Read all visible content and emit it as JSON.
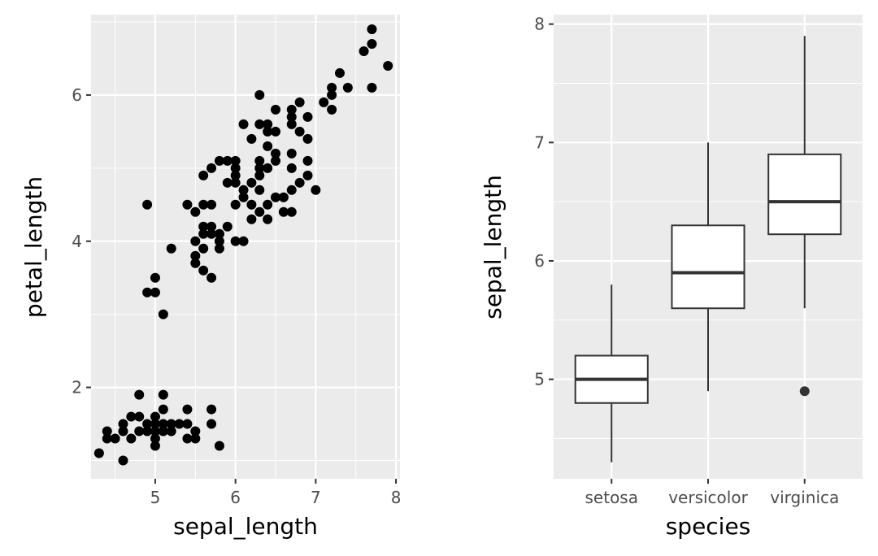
{
  "chart_data": [
    {
      "type": "scatter",
      "xlabel": "sepal_length",
      "ylabel": "petal_length",
      "xlim": [
        4.2,
        8.05
      ],
      "ylim": [
        0.75,
        7.1
      ],
      "x_ticks": [
        5,
        6,
        7,
        8
      ],
      "y_ticks": [
        2,
        4,
        6
      ],
      "x_minor_ticks": [
        4.5,
        5.5,
        6.5,
        7.5
      ],
      "y_minor_ticks": [
        1,
        3,
        5,
        7
      ],
      "grid": true,
      "points": [
        [
          4.3,
          1.1
        ],
        [
          4.4,
          1.3
        ],
        [
          4.4,
          1.4
        ],
        [
          4.5,
          1.3
        ],
        [
          4.6,
          1.0
        ],
        [
          4.6,
          1.4
        ],
        [
          4.6,
          1.5
        ],
        [
          4.7,
          1.3
        ],
        [
          4.7,
          1.6
        ],
        [
          4.8,
          1.4
        ],
        [
          4.8,
          1.6
        ],
        [
          4.8,
          1.9
        ],
        [
          4.9,
          1.4
        ],
        [
          4.9,
          1.5
        ],
        [
          5.0,
          1.2
        ],
        [
          5.0,
          1.3
        ],
        [
          5.0,
          1.4
        ],
        [
          5.0,
          1.5
        ],
        [
          5.0,
          1.6
        ],
        [
          5.1,
          1.4
        ],
        [
          5.1,
          1.5
        ],
        [
          5.1,
          1.7
        ],
        [
          5.1,
          1.9
        ],
        [
          5.2,
          1.4
        ],
        [
          5.2,
          1.5
        ],
        [
          5.3,
          1.5
        ],
        [
          5.4,
          1.3
        ],
        [
          5.4,
          1.5
        ],
        [
          5.4,
          1.7
        ],
        [
          5.5,
          1.3
        ],
        [
          5.5,
          1.4
        ],
        [
          5.7,
          1.5
        ],
        [
          5.7,
          1.7
        ],
        [
          5.8,
          1.2
        ],
        [
          4.9,
          3.3
        ],
        [
          4.9,
          4.5
        ],
        [
          5.0,
          3.3
        ],
        [
          5.0,
          3.5
        ],
        [
          5.1,
          3.0
        ],
        [
          5.2,
          3.9
        ],
        [
          5.4,
          4.5
        ],
        [
          5.5,
          3.7
        ],
        [
          5.5,
          3.8
        ],
        [
          5.5,
          4.0
        ],
        [
          5.5,
          4.4
        ],
        [
          5.6,
          3.6
        ],
        [
          5.6,
          3.9
        ],
        [
          5.6,
          4.1
        ],
        [
          5.6,
          4.2
        ],
        [
          5.6,
          4.5
        ],
        [
          5.7,
          3.5
        ],
        [
          5.7,
          4.1
        ],
        [
          5.7,
          4.2
        ],
        [
          5.7,
          4.5
        ],
        [
          5.8,
          3.9
        ],
        [
          5.8,
          4.0
        ],
        [
          5.8,
          4.1
        ],
        [
          5.9,
          4.2
        ],
        [
          5.9,
          4.8
        ],
        [
          6.0,
          4.0
        ],
        [
          6.0,
          4.5
        ],
        [
          6.0,
          5.1
        ],
        [
          6.1,
          4.0
        ],
        [
          6.1,
          4.6
        ],
        [
          6.1,
          4.7
        ],
        [
          6.2,
          4.3
        ],
        [
          6.2,
          4.5
        ],
        [
          6.3,
          4.4
        ],
        [
          6.3,
          4.7
        ],
        [
          6.3,
          4.9
        ],
        [
          6.4,
          4.3
        ],
        [
          6.4,
          4.5
        ],
        [
          6.5,
          4.6
        ],
        [
          6.6,
          4.4
        ],
        [
          6.6,
          4.6
        ],
        [
          6.7,
          4.4
        ],
        [
          6.7,
          4.7
        ],
        [
          6.7,
          5.0
        ],
        [
          6.8,
          4.8
        ],
        [
          6.9,
          4.9
        ],
        [
          7.0,
          4.7
        ],
        [
          5.6,
          4.9
        ],
        [
          5.7,
          5.0
        ],
        [
          5.8,
          5.1
        ],
        [
          5.9,
          5.1
        ],
        [
          6.0,
          4.8
        ],
        [
          6.0,
          5.0
        ],
        [
          6.1,
          5.6
        ],
        [
          6.2,
          5.4
        ],
        [
          6.3,
          5.0
        ],
        [
          6.3,
          5.1
        ],
        [
          6.3,
          5.6
        ],
        [
          6.3,
          6.0
        ],
        [
          6.4,
          5.3
        ],
        [
          6.4,
          5.5
        ],
        [
          6.4,
          5.6
        ],
        [
          6.5,
          5.1
        ],
        [
          6.5,
          5.2
        ],
        [
          6.5,
          5.5
        ],
        [
          6.5,
          5.8
        ],
        [
          6.7,
          5.2
        ],
        [
          6.7,
          5.6
        ],
        [
          6.7,
          5.7
        ],
        [
          6.7,
          5.8
        ],
        [
          6.8,
          5.5
        ],
        [
          6.8,
          5.9
        ],
        [
          6.9,
          5.1
        ],
        [
          6.9,
          5.4
        ],
        [
          6.9,
          5.7
        ],
        [
          7.1,
          5.9
        ],
        [
          7.2,
          5.8
        ],
        [
          7.2,
          6.0
        ],
        [
          7.2,
          6.1
        ],
        [
          7.3,
          6.3
        ],
        [
          7.4,
          6.1
        ],
        [
          7.6,
          6.6
        ],
        [
          7.7,
          6.1
        ],
        [
          7.7,
          6.7
        ],
        [
          7.7,
          6.9
        ],
        [
          7.9,
          6.4
        ],
        [
          6.2,
          4.8
        ],
        [
          6.0,
          4.9
        ],
        [
          6.4,
          5.0
        ]
      ]
    },
    {
      "type": "boxplot",
      "xlabel": "species",
      "ylabel": "sepal_length",
      "ylim": [
        4.16,
        8.08
      ],
      "y_ticks": [
        5,
        6,
        7,
        8
      ],
      "y_minor_ticks": [
        4.5,
        5.5,
        6.5,
        7.5
      ],
      "grid": true,
      "categories": [
        "setosa",
        "versicolor",
        "virginica"
      ],
      "boxes": [
        {
          "min": 4.3,
          "q1": 4.8,
          "median": 5.0,
          "q3": 5.2,
          "max": 5.8,
          "outliers": []
        },
        {
          "min": 4.9,
          "q1": 5.6,
          "median": 5.9,
          "q3": 6.3,
          "max": 7.0,
          "outliers": []
        },
        {
          "min": 5.6,
          "q1": 6.225,
          "median": 6.5,
          "q3": 6.9,
          "max": 7.9,
          "outliers": [
            4.9
          ]
        }
      ]
    }
  ]
}
